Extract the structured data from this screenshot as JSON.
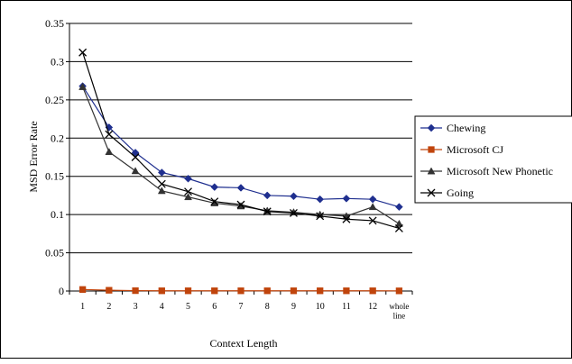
{
  "chart_data": {
    "type": "line",
    "title": "",
    "xlabel": "Context Length",
    "ylabel": "MSD Error Rate",
    "categories": [
      "1",
      "2",
      "3",
      "4",
      "5",
      "6",
      "7",
      "8",
      "9",
      "10",
      "11",
      "12",
      "whole line"
    ],
    "ylim": [
      0,
      0.35
    ],
    "yticks": [
      "0",
      "0.05",
      "0.1",
      "0.15",
      "0.2",
      "0.25",
      "0.3",
      "0.35"
    ],
    "ytick_values": [
      0,
      0.05,
      0.1,
      0.15,
      0.2,
      0.25,
      0.3,
      0.35
    ],
    "grid": "horizontal",
    "legend_position": "right",
    "series": [
      {
        "name": "Chewing",
        "color": "#1f2f8f",
        "marker": "diamond",
        "values": [
          0.268,
          0.214,
          0.181,
          0.155,
          0.147,
          0.136,
          0.135,
          0.125,
          0.124,
          0.12,
          0.121,
          0.12,
          0.11
        ]
      },
      {
        "name": "Microsoft CJ",
        "color": "#c0440c",
        "marker": "square",
        "values": [
          0.002,
          0.001,
          0.0005,
          0.0003,
          0.0003,
          0.0003,
          0.0003,
          0.0003,
          0.0003,
          0.0003,
          0.0003,
          0.0003,
          0.0002
        ]
      },
      {
        "name": "Microsoft New Phonetic",
        "color": "#333333",
        "marker": "triangle",
        "values": [
          0.267,
          0.182,
          0.157,
          0.131,
          0.123,
          0.115,
          0.111,
          0.105,
          0.103,
          0.1,
          0.098,
          0.11,
          0.088
        ]
      },
      {
        "name": "Going",
        "color": "#000000",
        "marker": "x",
        "values": [
          0.312,
          0.205,
          0.175,
          0.14,
          0.13,
          0.117,
          0.113,
          0.104,
          0.102,
          0.098,
          0.094,
          0.092,
          0.082
        ]
      }
    ]
  }
}
